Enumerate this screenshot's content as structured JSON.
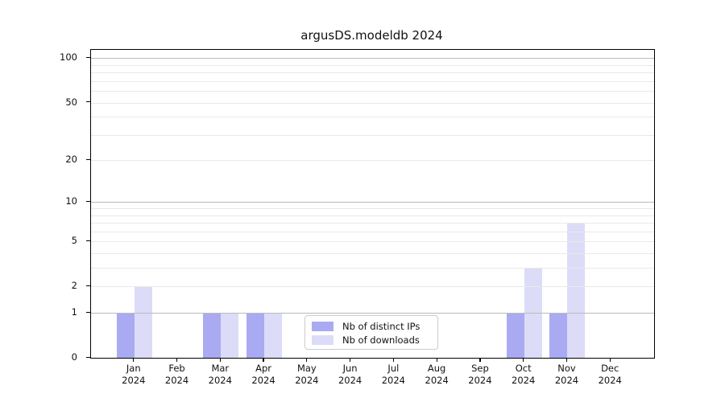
{
  "chart_data": {
    "type": "bar",
    "title": "argusDS.modeldb 2024",
    "categories": [
      "Jan",
      "Feb",
      "Mar",
      "Apr",
      "May",
      "Jun",
      "Jul",
      "Aug",
      "Sep",
      "Oct",
      "Nov",
      "Dec"
    ],
    "x_year_suffix": "2024",
    "series": [
      {
        "name": "Nb of distinct IPs",
        "color": "#aaaaf2",
        "values": [
          1,
          0,
          1,
          1,
          0,
          0,
          0,
          0,
          0,
          1,
          1,
          0
        ]
      },
      {
        "name": "Nb of downloads",
        "color": "#dcdcf8",
        "values": [
          2,
          0,
          1,
          1,
          0,
          0,
          0,
          0,
          0,
          3,
          7,
          0
        ]
      }
    ],
    "yscale": "log1p",
    "ylim": [
      0,
      114
    ],
    "ytick_values": [
      0,
      1,
      2,
      5,
      10,
      20,
      50,
      100
    ],
    "ytick_labels": [
      "0",
      "1",
      "2",
      "5",
      "10",
      "20",
      "50",
      "100"
    ],
    "major_gridline_values": [
      1,
      10,
      100
    ],
    "minor_gridline_values": [
      2,
      3,
      4,
      5,
      6,
      7,
      8,
      9,
      20,
      30,
      40,
      50,
      60,
      70,
      80,
      90
    ],
    "grid": true,
    "legend_position": "lower center inside plot",
    "colors": {
      "background": "#ffffff",
      "spine": "#000000",
      "major_grid": "#bbbbbb",
      "minor_grid": "#e9e9e9",
      "text": "#111111",
      "legend_border": "#cccccc"
    }
  }
}
